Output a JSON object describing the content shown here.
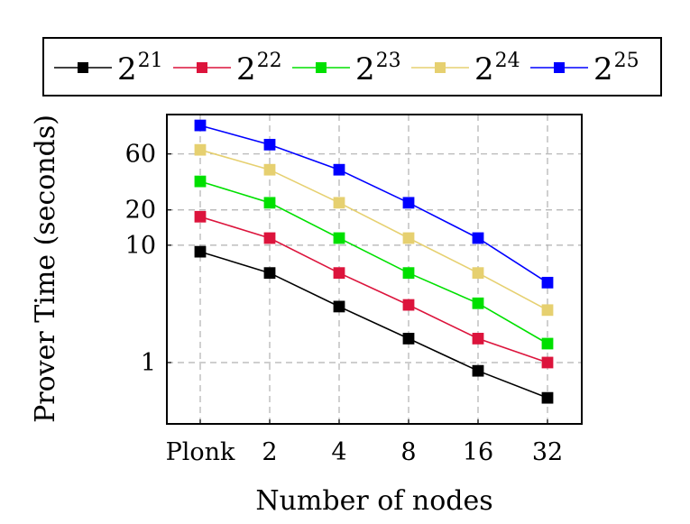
{
  "chart_data": {
    "type": "line",
    "categories": [
      "Plonk",
      "2",
      "4",
      "8",
      "16",
      "32"
    ],
    "xlabel": "Number of nodes",
    "ylabel": "Prover Time (seconds)",
    "yscale": "log",
    "ylim": [
      0.3,
      130
    ],
    "yticks": [
      1,
      10,
      20,
      60
    ],
    "ytick_labels": [
      "1",
      "10",
      "20",
      "60"
    ],
    "grid": true,
    "legend_position": "top",
    "series": [
      {
        "name": "2",
        "exp": "21",
        "color": "#000000",
        "values": [
          8.8,
          5.8,
          3.0,
          1.6,
          0.85,
          0.5
        ]
      },
      {
        "name": "2",
        "exp": "22",
        "color": "#dc143c",
        "values": [
          17.5,
          11.5,
          5.8,
          3.1,
          1.6,
          1.0
        ]
      },
      {
        "name": "2",
        "exp": "23",
        "color": "#00e000",
        "values": [
          35,
          23,
          11.5,
          5.8,
          3.2,
          1.45
        ]
      },
      {
        "name": "2",
        "exp": "24",
        "color": "#e6d070",
        "values": [
          65,
          44,
          23,
          11.5,
          5.8,
          2.8
        ]
      },
      {
        "name": "2",
        "exp": "25",
        "color": "#0000ff",
        "values": [
          105,
          72,
          44,
          23,
          11.5,
          4.8
        ]
      }
    ]
  }
}
